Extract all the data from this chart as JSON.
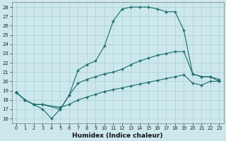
{
  "xlabel": "Humidex (Indice chaleur)",
  "ylabel": "",
  "bg_color": "#cce8ec",
  "grid_color": "#aacfd6",
  "line_color": "#1a6b6b",
  "xlim": [
    -0.5,
    23.5
  ],
  "ylim": [
    15.5,
    28.5
  ],
  "xticks": [
    0,
    1,
    2,
    3,
    4,
    5,
    6,
    7,
    8,
    9,
    10,
    11,
    12,
    13,
    14,
    15,
    16,
    17,
    18,
    19,
    20,
    21,
    22,
    23
  ],
  "yticks": [
    16,
    17,
    18,
    19,
    20,
    21,
    22,
    23,
    24,
    25,
    26,
    27,
    28
  ],
  "curve1_x": [
    0,
    1,
    2,
    3,
    4,
    5,
    6,
    7,
    8,
    9,
    10,
    11,
    12,
    13,
    14,
    15,
    16,
    17,
    18,
    19,
    20,
    21,
    22,
    23
  ],
  "curve1_y": [
    18.8,
    18.0,
    17.5,
    17.0,
    16.0,
    17.0,
    18.5,
    21.2,
    21.8,
    22.2,
    23.8,
    26.5,
    27.8,
    28.0,
    28.0,
    28.0,
    27.8,
    27.5,
    27.5,
    25.5,
    20.8,
    20.5,
    20.5,
    20.0
  ],
  "curve2_x": [
    0,
    1,
    2,
    3,
    5,
    6,
    7,
    8,
    9,
    10,
    11,
    12,
    13,
    14,
    15,
    16,
    17,
    18,
    19,
    20,
    21,
    22,
    23
  ],
  "curve2_y": [
    18.8,
    18.0,
    17.5,
    17.5,
    17.0,
    18.5,
    19.8,
    20.2,
    20.5,
    20.8,
    21.0,
    21.3,
    21.8,
    22.2,
    22.5,
    22.8,
    23.0,
    23.2,
    23.2,
    20.8,
    20.5,
    20.5,
    20.2
  ],
  "curve3_x": [
    0,
    1,
    2,
    3,
    5,
    6,
    7,
    8,
    9,
    10,
    11,
    12,
    13,
    14,
    15,
    16,
    17,
    18,
    19,
    20,
    21,
    22,
    23
  ],
  "curve3_y": [
    18.8,
    18.0,
    17.5,
    17.5,
    17.2,
    17.5,
    18.0,
    18.3,
    18.6,
    18.9,
    19.1,
    19.3,
    19.5,
    19.7,
    19.9,
    20.1,
    20.3,
    20.5,
    20.7,
    19.8,
    19.6,
    20.0,
    20.0
  ]
}
